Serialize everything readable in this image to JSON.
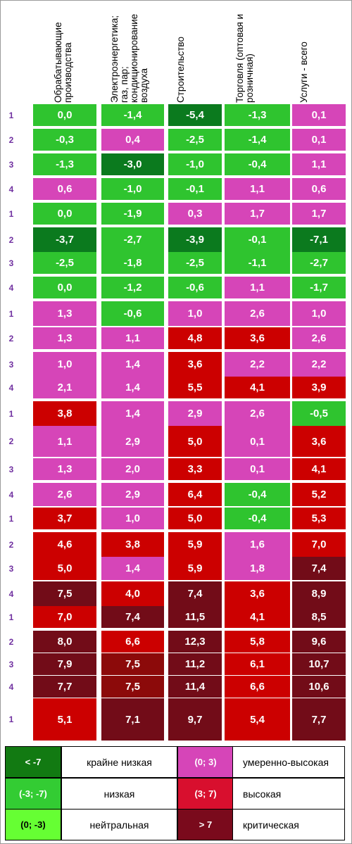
{
  "chart_data": {
    "type": "heatmap",
    "columns": [
      "Обрабатывающие\nпроизводства",
      "Электроэнергетика;\nгаз, пар;\nкондиционирование\nвоздуха",
      "Строительство",
      "Торговля (оптовая и\nрозничная)",
      "Услуги - всего"
    ],
    "row_labels": [
      "1",
      "2",
      "3",
      "4",
      "1",
      "2",
      "3",
      "4",
      "1",
      "2",
      "3",
      "4",
      "1",
      "2",
      "3",
      "4",
      "1",
      "2",
      "3",
      "4",
      "1",
      "2",
      "3",
      "4",
      "1"
    ],
    "values": [
      [
        "0,0",
        "-1,4",
        "-5,4",
        "-1,3",
        "0,1"
      ],
      [
        "-0,3",
        "0,4",
        "-2,5",
        "-1,4",
        "0,1"
      ],
      [
        "-1,3",
        "-3,0",
        "-1,0",
        "-0,4",
        "1,1"
      ],
      [
        "0,6",
        "-1,0",
        "-0,1",
        "1,1",
        "0,6"
      ],
      [
        "0,0",
        "-1,9",
        "0,3",
        "1,7",
        "1,7"
      ],
      [
        "-3,7",
        "-2,7",
        "-3,9",
        "-0,1",
        "-7,1"
      ],
      [
        "-2,5",
        "-1,8",
        "-2,5",
        "-1,1",
        "-2,7"
      ],
      [
        "0,0",
        "-1,2",
        "-0,6",
        "1,1",
        "-1,7"
      ],
      [
        "1,3",
        "-0,6",
        "1,0",
        "2,6",
        "1,0"
      ],
      [
        "1,3",
        "1,1",
        "4,8",
        "3,6",
        "2,6"
      ],
      [
        "1,0",
        "1,4",
        "3,6",
        "2,2",
        "2,2"
      ],
      [
        "2,1",
        "1,4",
        "5,5",
        "4,1",
        "3,9"
      ],
      [
        "3,8",
        "1,4",
        "2,9",
        "2,6",
        "-0,5"
      ],
      [
        "1,1",
        "2,9",
        "5,0",
        "0,1",
        "3,6"
      ],
      [
        "1,3",
        "2,0",
        "3,3",
        "0,1",
        "4,1"
      ],
      [
        "2,6",
        "2,9",
        "6,4",
        "-0,4",
        "5,2"
      ],
      [
        "3,7",
        "1,0",
        "5,0",
        "-0,4",
        "5,3"
      ],
      [
        "4,6",
        "3,8",
        "5,9",
        "1,6",
        "7,0"
      ],
      [
        "5,0",
        "1,4",
        "5,9",
        "1,8",
        "7,4"
      ],
      [
        "7,5",
        "4,0",
        "7,4",
        "3,6",
        "8,9"
      ],
      [
        "7,0",
        "7,4",
        "11,5",
        "4,1",
        "8,5"
      ],
      [
        "8,0",
        "6,6",
        "12,3",
        "5,8",
        "9,6"
      ],
      [
        "7,9",
        "7,5",
        "11,2",
        "6,1",
        "10,7"
      ],
      [
        "7,7",
        "7,5",
        "11,4",
        "6,6",
        "10,6"
      ],
      [
        "5,1",
        "7,1",
        "9,7",
        "5,4",
        "7,7"
      ]
    ],
    "legend": [
      {
        "range": "< -7",
        "label": "крайне низкая",
        "color": "#127a12"
      },
      {
        "range": "(-3; -7)",
        "label": "низкая",
        "color": "#33cc33"
      },
      {
        "range": "(0; -3)",
        "label": "нейтральная",
        "color": "#66ff33"
      },
      {
        "range": "(0; 3)",
        "label": "умеренно-высокая",
        "color": "#d645b8"
      },
      {
        "range": "(3; 7)",
        "label": "высокая",
        "color": "#d80f2e"
      },
      {
        "range": "> 7",
        "label": "критическая",
        "color": "#7a0a1c"
      }
    ]
  },
  "colors": {
    "dark_green": "#0b7a1e",
    "green": "#2fc42f",
    "magenta": "#d645b8",
    "red": "#cc0000",
    "dark_red": "#720c18",
    "row_label": "#7030a0"
  }
}
